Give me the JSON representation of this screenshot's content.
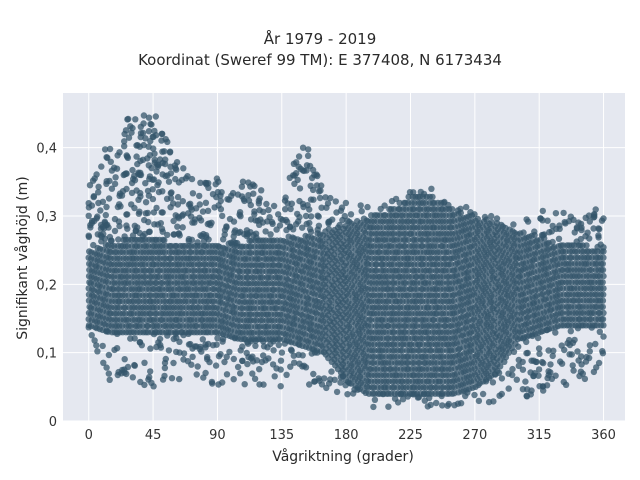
{
  "chart_data": {
    "type": "scatter",
    "title_line1": "År 1979 - 2019",
    "title_line2": "Koordinat (Sweref 99 TM): E 377408, N 6173434",
    "xlabel": "Vågriktning (grader)",
    "ylabel": "Signifikant våghöjd (m)",
    "xlim": [
      -18,
      375
    ],
    "ylim": [
      0,
      0.48
    ],
    "x_ticks": [
      0,
      45,
      90,
      135,
      180,
      225,
      270,
      315,
      360
    ],
    "x_tick_labels": [
      "0",
      "45",
      "90",
      "135",
      "180",
      "225",
      "270",
      "315",
      "360"
    ],
    "y_ticks": [
      0,
      0.1,
      0.2,
      0.3,
      0.4
    ],
    "y_tick_labels": [
      "0",
      "0,1",
      "0,2",
      "0,3",
      "0,4"
    ],
    "grid": true,
    "colors": {
      "marker": "#34566b",
      "plot_bg": "#e5e8f0",
      "grid": "#ffffff"
    },
    "envelope": {
      "x": [
        0,
        15,
        30,
        45,
        60,
        75,
        90,
        105,
        120,
        135,
        150,
        165,
        180,
        195,
        210,
        225,
        240,
        255,
        270,
        285,
        300,
        315,
        330,
        345,
        360
      ],
      "core_low": [
        0.14,
        0.13,
        0.13,
        0.13,
        0.13,
        0.13,
        0.13,
        0.12,
        0.12,
        0.12,
        0.11,
        0.1,
        0.06,
        0.04,
        0.04,
        0.04,
        0.04,
        0.04,
        0.05,
        0.07,
        0.12,
        0.13,
        0.14,
        0.14,
        0.14
      ],
      "core_high": [
        0.25,
        0.26,
        0.27,
        0.27,
        0.26,
        0.26,
        0.26,
        0.26,
        0.27,
        0.27,
        0.27,
        0.28,
        0.29,
        0.3,
        0.31,
        0.33,
        0.33,
        0.31,
        0.3,
        0.29,
        0.28,
        0.27,
        0.26,
        0.26,
        0.25
      ],
      "outer_low": [
        0.12,
        0.05,
        0.05,
        0.05,
        0.06,
        0.06,
        0.05,
        0.05,
        0.05,
        0.05,
        0.05,
        0.04,
        0.03,
        0.02,
        0.02,
        0.02,
        0.02,
        0.02,
        0.02,
        0.03,
        0.03,
        0.04,
        0.05,
        0.06,
        0.06
      ],
      "outer_high": [
        0.35,
        0.41,
        0.45,
        0.46,
        0.39,
        0.35,
        0.37,
        0.36,
        0.34,
        0.32,
        0.42,
        0.33,
        0.32,
        0.32,
        0.32,
        0.34,
        0.34,
        0.32,
        0.31,
        0.3,
        0.29,
        0.31,
        0.31,
        0.3,
        0.33
      ]
    }
  }
}
